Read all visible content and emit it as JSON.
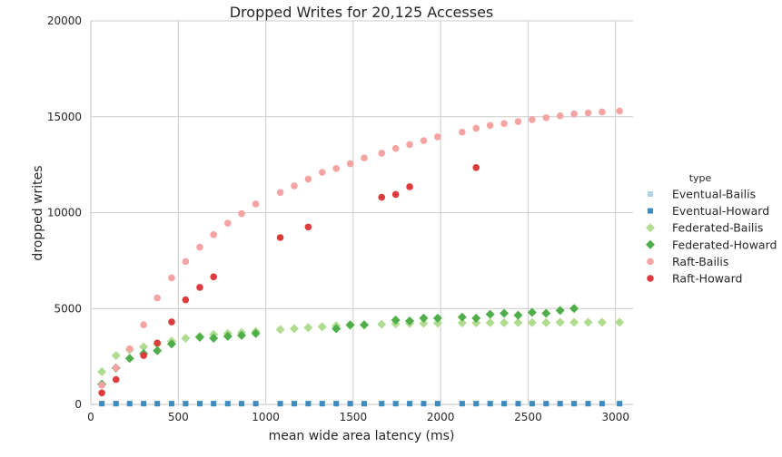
{
  "chart_data": {
    "type": "scatter",
    "title": "Dropped Writes for 20,125 Accesses",
    "xlabel": "mean wide area latency (ms)",
    "ylabel": "dropped writes",
    "xlim": [
      0,
      3100
    ],
    "ylim": [
      0,
      20000
    ],
    "xticks": [
      0,
      500,
      1000,
      1500,
      2000,
      2500,
      3000
    ],
    "yticks": [
      0,
      5000,
      10000,
      15000,
      20000
    ],
    "grid": true,
    "legend": {
      "title": "type",
      "placement": "right"
    },
    "series": [
      {
        "name": "Eventual-Bailis",
        "marker": "square",
        "color": "#b3d4e6",
        "x": [
          63,
          144,
          222,
          302,
          380,
          462,
          542,
          623,
          702,
          783,
          862,
          943,
          1083,
          1163,
          1243,
          1323,
          1403,
          1483,
          1563,
          1663,
          1743,
          1823,
          1903,
          1983,
          2123,
          2203,
          2283,
          2363,
          2443,
          2523,
          2603,
          2683,
          2763,
          2843,
          2923,
          3023
        ],
        "y": [
          40,
          40,
          40,
          40,
          40,
          40,
          40,
          40,
          40,
          40,
          40,
          40,
          40,
          40,
          40,
          40,
          40,
          40,
          40,
          40,
          40,
          40,
          40,
          40,
          40,
          40,
          40,
          40,
          40,
          40,
          40,
          40,
          40,
          40,
          40,
          40
        ]
      },
      {
        "name": "Eventual-Howard",
        "marker": "square",
        "color": "#3e8bbf",
        "x": [
          63,
          144,
          222,
          302,
          380,
          462,
          542,
          623,
          702,
          783,
          862,
          943,
          1083,
          1163,
          1243,
          1323,
          1403,
          1483,
          1563,
          1663,
          1743,
          1823,
          1903,
          1983,
          2123,
          2203,
          2283,
          2363,
          2443,
          2523,
          2603,
          2683,
          2763,
          2843,
          2923,
          3023
        ],
        "y": [
          40,
          40,
          40,
          40,
          40,
          40,
          40,
          40,
          40,
          40,
          40,
          40,
          40,
          40,
          40,
          40,
          40,
          40,
          40,
          40,
          40,
          40,
          40,
          40,
          40,
          40,
          40,
          40,
          40,
          40,
          40,
          40,
          40,
          40,
          40,
          40
        ]
      },
      {
        "name": "Federated-Bailis",
        "marker": "diamond",
        "color": "#b0dc8f",
        "x": [
          63,
          144,
          222,
          302,
          380,
          462,
          542,
          623,
          702,
          783,
          862,
          943,
          1083,
          1163,
          1243,
          1323,
          1403,
          1483,
          1563,
          1663,
          1743,
          1823,
          1903,
          1983,
          2123,
          2203,
          2283,
          2363,
          2443,
          2523,
          2603,
          2683,
          2763,
          2843,
          2923,
          3023
        ],
        "y": [
          1700,
          2550,
          2850,
          3000,
          3150,
          3300,
          3450,
          3550,
          3650,
          3700,
          3750,
          3800,
          3900,
          3950,
          4000,
          4050,
          4100,
          4120,
          4150,
          4180,
          4200,
          4220,
          4230,
          4240,
          4250,
          4250,
          4260,
          4260,
          4270,
          4270,
          4270,
          4280,
          4280,
          4280,
          4280,
          4280
        ]
      },
      {
        "name": "Federated-Howard",
        "marker": "diamond",
        "color": "#4fad4a",
        "x": [
          63,
          144,
          222,
          302,
          380,
          462,
          623,
          702,
          783,
          862,
          943,
          1403,
          1483,
          1563,
          1743,
          1823,
          1903,
          1983,
          2123,
          2203,
          2283,
          2363,
          2443,
          2523,
          2603,
          2683,
          2763
        ],
        "y": [
          1050,
          1900,
          2400,
          2650,
          2800,
          3150,
          3500,
          3450,
          3550,
          3600,
          3700,
          3950,
          4150,
          4150,
          4400,
          4350,
          4500,
          4500,
          4550,
          4500,
          4700,
          4750,
          4650,
          4800,
          4750,
          4900,
          5000
        ]
      },
      {
        "name": "Raft-Bailis",
        "marker": "circle",
        "color": "#f5a3a3",
        "x": [
          63,
          144,
          222,
          302,
          380,
          462,
          542,
          623,
          702,
          783,
          862,
          943,
          1083,
          1163,
          1243,
          1323,
          1403,
          1483,
          1563,
          1663,
          1743,
          1823,
          1903,
          1983,
          2123,
          2203,
          2283,
          2363,
          2443,
          2523,
          2603,
          2683,
          2763,
          2843,
          2923,
          3023
        ],
        "y": [
          1000,
          1900,
          2900,
          4150,
          5550,
          6600,
          7450,
          8200,
          8850,
          9450,
          9950,
          10450,
          11050,
          11400,
          11750,
          12100,
          12300,
          12550,
          12850,
          13100,
          13350,
          13550,
          13750,
          13950,
          14200,
          14400,
          14550,
          14650,
          14750,
          14850,
          14950,
          15050,
          15150,
          15200,
          15250,
          15300
        ]
      },
      {
        "name": "Raft-Howard",
        "marker": "circle",
        "color": "#dd3c3c",
        "x": [
          63,
          144,
          302,
          380,
          462,
          542,
          623,
          702,
          1083,
          1243,
          1663,
          1743,
          1823,
          2203
        ],
        "y": [
          600,
          1300,
          2550,
          3200,
          4300,
          5450,
          6100,
          6650,
          8700,
          9250,
          10800,
          10950,
          11350,
          12350
        ]
      }
    ]
  }
}
